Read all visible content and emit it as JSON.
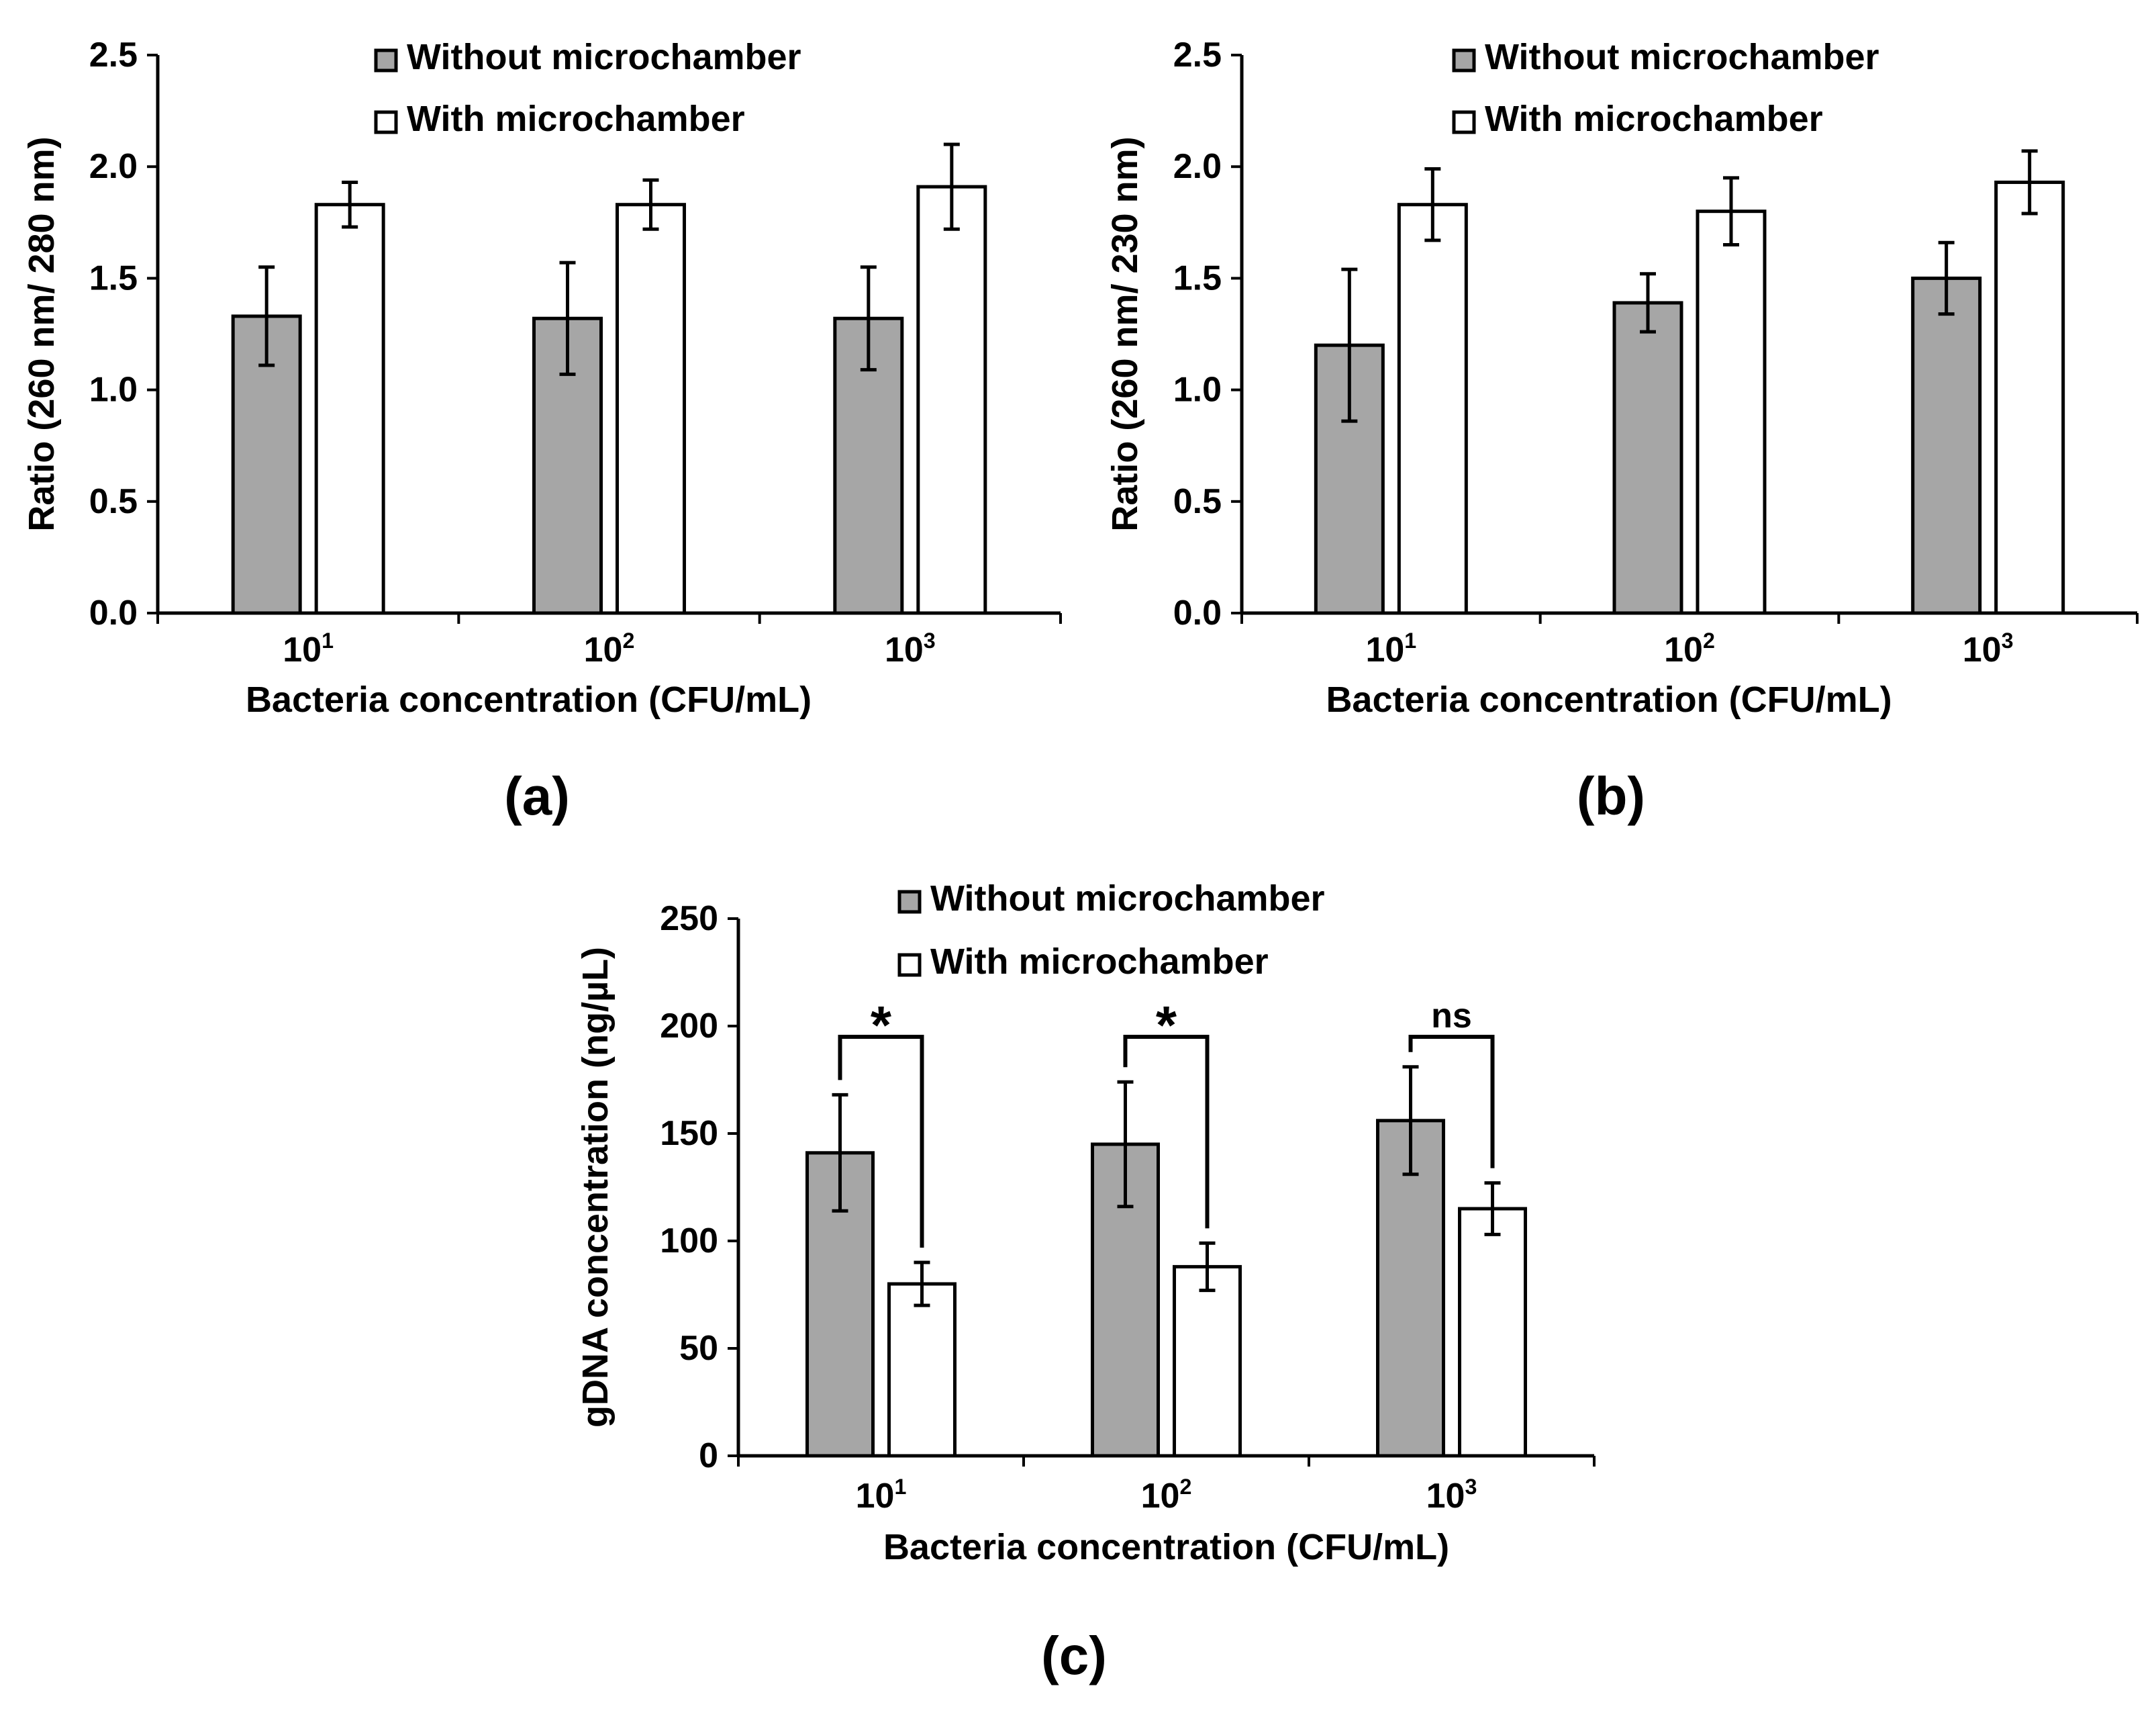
{
  "colors": {
    "bar_without": "#a6a6a6",
    "bar_with": "#ffffff",
    "stroke": "#000000"
  },
  "chart_data": [
    {
      "id": "a",
      "type": "bar",
      "panel_label": "(a)",
      "title": "",
      "xlabel": "Bacteria concentration (CFU/mL)",
      "ylabel": "Ratio (260 nm/ 280 nm)",
      "ylim": [
        0,
        2.5
      ],
      "yticks": [
        "0.0",
        "0.5",
        "1.0",
        "1.5",
        "2.0",
        "2.5"
      ],
      "tick_values": [
        0,
        0.5,
        1.0,
        1.5,
        2.0,
        2.5
      ],
      "categories": [
        {
          "base": "10",
          "exp": "1"
        },
        {
          "base": "10",
          "exp": "2"
        },
        {
          "base": "10",
          "exp": "3"
        }
      ],
      "series": [
        {
          "name": "Without microchamber",
          "values": [
            1.33,
            1.32,
            1.32
          ],
          "errors": [
            0.22,
            0.25,
            0.23
          ]
        },
        {
          "name": "With microchamber",
          "values": [
            1.83,
            1.83,
            1.91
          ],
          "errors": [
            0.1,
            0.11,
            0.19
          ]
        }
      ],
      "significance": []
    },
    {
      "id": "b",
      "type": "bar",
      "panel_label": "(b)",
      "title": "",
      "xlabel": "Bacteria concentration (CFU/mL)",
      "ylabel": "Ratio (260 nm/ 230 nm)",
      "ylim": [
        0,
        2.5
      ],
      "yticks": [
        "0.0",
        "0.5",
        "1.0",
        "1.5",
        "2.0",
        "2.5"
      ],
      "tick_values": [
        0,
        0.5,
        1.0,
        1.5,
        2.0,
        2.5
      ],
      "categories": [
        {
          "base": "10",
          "exp": "1"
        },
        {
          "base": "10",
          "exp": "2"
        },
        {
          "base": "10",
          "exp": "3"
        }
      ],
      "series": [
        {
          "name": "Without microchamber",
          "values": [
            1.2,
            1.39,
            1.5
          ],
          "errors": [
            0.34,
            0.13,
            0.16
          ]
        },
        {
          "name": "With microchamber",
          "values": [
            1.83,
            1.8,
            1.93
          ],
          "errors": [
            0.16,
            0.15,
            0.14
          ]
        }
      ],
      "significance": []
    },
    {
      "id": "c",
      "type": "bar",
      "panel_label": "(c)",
      "title": "",
      "xlabel": "Bacteria concentration (CFU/mL)",
      "ylabel": "gDNA concentration (ng/µL)",
      "ylim": [
        0,
        250
      ],
      "yticks": [
        "0",
        "50",
        "100",
        "150",
        "200",
        "250"
      ],
      "tick_values": [
        0,
        50,
        100,
        150,
        200,
        250
      ],
      "categories": [
        {
          "base": "10",
          "exp": "1"
        },
        {
          "base": "10",
          "exp": "2"
        },
        {
          "base": "10",
          "exp": "3"
        }
      ],
      "series": [
        {
          "name": "Without microchamber",
          "values": [
            141,
            145,
            156
          ],
          "errors": [
            27,
            29,
            25
          ]
        },
        {
          "name": "With microchamber",
          "values": [
            80,
            88,
            115
          ],
          "errors": [
            10,
            11,
            12
          ]
        }
      ],
      "significance": [
        {
          "category_index": 0,
          "label": "*",
          "level": 195
        },
        {
          "category_index": 1,
          "label": "*",
          "level": 195
        },
        {
          "category_index": 2,
          "label": "ns",
          "level": 195
        }
      ]
    }
  ]
}
